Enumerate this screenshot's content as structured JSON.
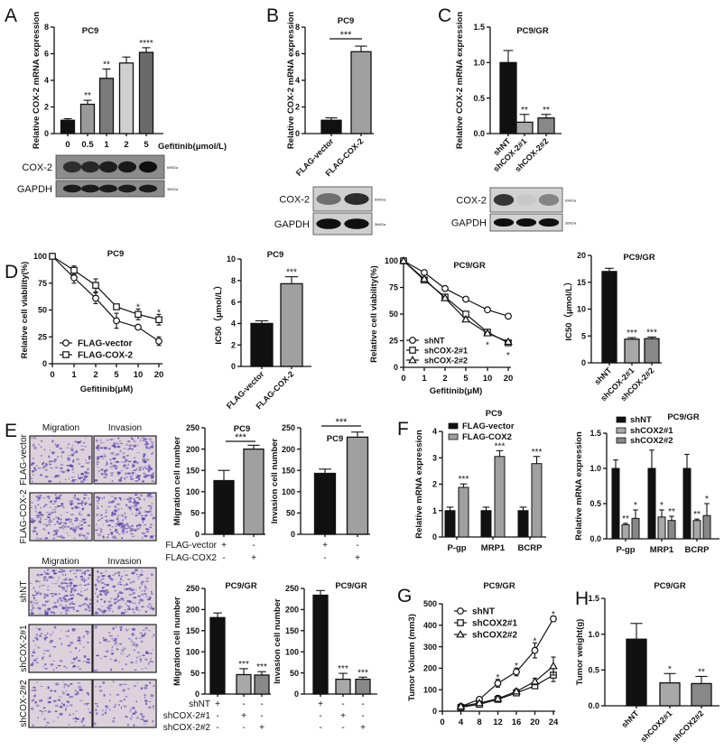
{
  "panel_labels": [
    "A",
    "B",
    "C",
    "D",
    "E",
    "F",
    "G",
    "H"
  ],
  "blots": {
    "A": {
      "rows": [
        {
          "label": "COX-2",
          "size": "69KDa",
          "intensity": [
            0.75,
            0.8,
            0.88,
            0.92,
            1.0
          ]
        },
        {
          "label": "GAPDH",
          "size": "36KDa",
          "intensity": [
            0.9,
            0.9,
            0.9,
            0.9,
            0.9
          ]
        }
      ]
    },
    "B": {
      "rows": [
        {
          "label": "COX-2",
          "size": "69KDa",
          "intensity": [
            0.5,
            0.85
          ]
        },
        {
          "label": "GAPDH",
          "size": "36KDa",
          "intensity": [
            1.0,
            1.0
          ]
        }
      ]
    },
    "C": {
      "rows": [
        {
          "label": "COX-2",
          "size": "69KDa",
          "intensity": [
            0.8,
            0.05,
            0.4
          ]
        },
        {
          "label": "GAPDH",
          "size": "36KDa",
          "intensity": [
            1.0,
            1.0,
            1.0
          ]
        }
      ]
    }
  },
  "micrographs": {
    "pc9": {
      "columns": [
        "Migration",
        "Invasion"
      ],
      "rows": [
        "FLAG-vector",
        "FLAG-COX-2"
      ]
    },
    "pc9gr": {
      "columns": [
        "Migration",
        "Invasion"
      ],
      "rows": [
        "shNT",
        "shCOX-2#1",
        "shCOX-2#2"
      ]
    }
  },
  "chart_data": [
    {
      "id": "A",
      "type": "bar",
      "title": "PC9",
      "ylabel": "Relative COX-2 mRNA expression",
      "xlabel": "Gefitinib(μmol/L)",
      "categories": [
        "0",
        "0.5",
        "1",
        "2",
        "5"
      ],
      "values": [
        1,
        2.2,
        4.15,
        5.3,
        6.1
      ],
      "errors": [
        0.12,
        0.3,
        0.7,
        0.45,
        0.35
      ],
      "sig": [
        "",
        "**",
        "**",
        "",
        "****"
      ],
      "ylim": [
        0,
        8
      ],
      "yticks": [
        "0",
        "2",
        "4",
        "6",
        "8"
      ],
      "colors": [
        "#111111",
        "#9a9a9a",
        "#7a7a7a",
        "#cfcfcf",
        "#6a6a6a"
      ]
    },
    {
      "id": "B",
      "type": "bar",
      "title": "PC9",
      "ylabel": "Relative COX-2 mRNA expression",
      "categories": [
        "FLAG-vector",
        "FLAG-COX-2"
      ],
      "values": [
        1,
        6.15
      ],
      "errors": [
        0.18,
        0.42
      ],
      "bracket_sig": "***",
      "ylim": [
        0,
        8
      ],
      "yticks": [
        "0",
        "2",
        "4",
        "6",
        "8"
      ],
      "colors": [
        "#111111",
        "#a0a0a0"
      ]
    },
    {
      "id": "C",
      "type": "bar",
      "title": "PC9/GR",
      "ylabel": "Relative COX-2 mRNA expression",
      "categories": [
        "shNT",
        "shCOX-2#1",
        "shCOX-2#2"
      ],
      "values": [
        1,
        0.16,
        0.22
      ],
      "errors": [
        0.17,
        0.11,
        0.05
      ],
      "sig": [
        "",
        "**",
        "**"
      ],
      "ylim": [
        0,
        1.5
      ],
      "yticks": [
        "0.0",
        "0.5",
        "1.0",
        "1.5"
      ],
      "colors": [
        "#111111",
        "#a8a8a8",
        "#888888"
      ]
    },
    {
      "id": "D1",
      "type": "line",
      "title": "PC9",
      "ylabel": "Relative cell viability(%)",
      "xlabel": "Gefitinib(μM)",
      "x": [
        "0",
        "1",
        "2",
        "5",
        "10",
        "20"
      ],
      "ylim": [
        0,
        100
      ],
      "yticks": [
        "0",
        "25",
        "50",
        "75",
        "100"
      ],
      "legend": "bottom-left",
      "series": [
        {
          "name": "FLAG-vector",
          "marker": "circle",
          "values": [
            100,
            80,
            61,
            40,
            34,
            21
          ],
          "errors": [
            0,
            5,
            5,
            7,
            1,
            4
          ]
        },
        {
          "name": "FLAG-COX-2",
          "marker": "square",
          "values": [
            100,
            87,
            73,
            53,
            46,
            41
          ],
          "errors": [
            0,
            4,
            6,
            1,
            5,
            5
          ]
        }
      ],
      "sig": [
        "",
        "",
        "",
        "",
        "*",
        "*"
      ],
      "sig_position": "above"
    },
    {
      "id": "D2",
      "type": "bar",
      "title": "PC9",
      "ylabel": "IC50（μmol/L）",
      "categories": [
        "FLAG-vector",
        "FLAG-COX-2"
      ],
      "values": [
        4.0,
        7.7
      ],
      "errors": [
        0.25,
        0.65
      ],
      "sig": [
        "",
        "***"
      ],
      "ylim": [
        0,
        10
      ],
      "yticks": [
        "0",
        "2",
        "4",
        "6",
        "8",
        "10"
      ],
      "colors": [
        "#111111",
        "#a0a0a0"
      ]
    },
    {
      "id": "D3",
      "type": "line",
      "title": "PC9/GR",
      "ylabel": "Relative cell viability(%)",
      "xlabel": "Gefitinib(μM)",
      "x": [
        "0",
        "1",
        "2",
        "5",
        "10",
        "20"
      ],
      "ylim": [
        0,
        100
      ],
      "yticks": [
        "0",
        "25",
        "50",
        "75",
        "100"
      ],
      "legend": "bottom-left",
      "series": [
        {
          "name": "shNT",
          "marker": "circle",
          "values": [
            100,
            89,
            74,
            64,
            54,
            48
          ],
          "errors": [
            0,
            1,
            1,
            1,
            1,
            1
          ]
        },
        {
          "name": "shCOX-2#1",
          "marker": "square",
          "values": [
            100,
            82,
            66,
            50,
            33,
            23
          ],
          "errors": [
            0,
            1,
            1,
            1,
            1,
            2
          ]
        },
        {
          "name": "shCOX-2#2",
          "marker": "triangle",
          "values": [
            100,
            83,
            65,
            45,
            32,
            24
          ],
          "errors": [
            0,
            1,
            1,
            1,
            1,
            1
          ]
        }
      ],
      "sig": [
        "",
        "",
        "",
        "",
        "*",
        "*"
      ],
      "sig_position": "below"
    },
    {
      "id": "D4",
      "type": "bar",
      "title": "PC9/GR",
      "ylabel": "IC50（μmol/L）",
      "categories": [
        "shNT",
        "shCOX-2#1",
        "shCOX-2#2"
      ],
      "values": [
        17,
        4.4,
        4.5
      ],
      "errors": [
        0.6,
        0.3,
        0.3
      ],
      "sig": [
        "",
        "***",
        "***"
      ],
      "ylim": [
        0,
        20
      ],
      "yticks": [
        "0",
        "5",
        "10",
        "15",
        "20"
      ],
      "colors": [
        "#111111",
        "#a8a8a8",
        "#888888"
      ]
    },
    {
      "id": "E1",
      "type": "bar",
      "title": "PC9",
      "ylabel": "Migration cell number",
      "values": [
        126,
        200
      ],
      "errors": [
        24,
        9
      ],
      "bracket_sig": "***",
      "ylim": [
        0,
        250
      ],
      "yticks": [
        "0",
        "50",
        "100",
        "150",
        "200",
        "250"
      ],
      "colors": [
        "#111111",
        "#a0a0a0"
      ],
      "sign_rows": [
        {
          "label": "FLAG-vector",
          "signs": [
            "+",
            "-"
          ]
        },
        {
          "label": "FLAG-COX2",
          "signs": [
            "-",
            "+"
          ]
        }
      ]
    },
    {
      "id": "E2",
      "type": "bar",
      "title": "PC9",
      "ylabel": "Invasion cell number",
      "values": [
        143,
        228
      ],
      "errors": [
        10,
        12
      ],
      "bracket_sig": "***",
      "ylim": [
        0,
        250
      ],
      "yticks": [
        "0",
        "50",
        "100",
        "150",
        "200",
        "250"
      ],
      "colors": [
        "#111111",
        "#a0a0a0"
      ],
      "sign_rows": [
        {
          "signs": [
            "+",
            "-"
          ]
        },
        {
          "signs": [
            "-",
            "+"
          ]
        }
      ]
    },
    {
      "id": "E3",
      "type": "bar",
      "title": "PC9/GR",
      "ylabel": "Migration cell number",
      "values": [
        181,
        46,
        45
      ],
      "errors": [
        11,
        14,
        8
      ],
      "sig": [
        "",
        "***",
        "***"
      ],
      "ylim": [
        0,
        250
      ],
      "yticks": [
        "0",
        "50",
        "100",
        "150",
        "200",
        "250"
      ],
      "colors": [
        "#111111",
        "#a8a8a8",
        "#888888"
      ],
      "sign_rows": [
        {
          "label": "shNT",
          "signs": [
            "+",
            "-",
            "-"
          ]
        },
        {
          "label": "shCOX-2#1",
          "signs": [
            "-",
            "+",
            "-"
          ]
        },
        {
          "label": "shCOX-2#2",
          "signs": [
            "-",
            "-",
            "+"
          ]
        }
      ]
    },
    {
      "id": "E4",
      "type": "bar",
      "title": "PC9/GR",
      "ylabel": "Invasion cell number",
      "values": [
        234,
        35,
        35
      ],
      "errors": [
        11,
        14,
        5
      ],
      "sig": [
        "",
        "***",
        "***"
      ],
      "ylim": [
        0,
        250
      ],
      "yticks": [
        "0",
        "50",
        "100",
        "150",
        "200",
        "250"
      ],
      "colors": [
        "#111111",
        "#a8a8a8",
        "#888888"
      ],
      "sign_rows": [
        {
          "signs": [
            "+",
            "-",
            "-"
          ]
        },
        {
          "signs": [
            "-",
            "+",
            "-"
          ]
        },
        {
          "signs": [
            "-",
            "-",
            "+"
          ]
        }
      ]
    },
    {
      "id": "F1",
      "type": "grouped_bar",
      "title": "PC9",
      "ylabel": "Relative mRNA expression",
      "categories": [
        "P-gp",
        "MRP1",
        "BCRP"
      ],
      "ylim": [
        0,
        4
      ],
      "yticks": [
        "0",
        "1",
        "2",
        "3",
        "4"
      ],
      "legend": "top-left",
      "series": [
        {
          "name": "FLAG-vector",
          "color": "#111111",
          "values": [
            1,
            1,
            1
          ],
          "errors": [
            0.13,
            0.13,
            0.13
          ],
          "sig": [
            "",
            "",
            ""
          ]
        },
        {
          "name": "FLAG-COX2",
          "color": "#a0a0a0",
          "values": [
            1.88,
            3.05,
            2.78
          ],
          "errors": [
            0.13,
            0.22,
            0.27
          ],
          "sig": [
            "***",
            "***",
            "***"
          ]
        }
      ]
    },
    {
      "id": "F2",
      "type": "grouped_bar",
      "title": "PC9/GR",
      "ylabel": "Relative mRNA expression",
      "categories": [
        "P-gp",
        "MRP1",
        "BCRP"
      ],
      "ylim": [
        0,
        1.5
      ],
      "yticks": [
        "0.0",
        "0.5",
        "1.0",
        "1.5"
      ],
      "legend": "top-left",
      "series": [
        {
          "name": "shNT",
          "color": "#111111",
          "values": [
            1,
            1,
            1
          ],
          "errors": [
            0.12,
            0.26,
            0.2
          ],
          "sig": [
            "",
            "",
            ""
          ]
        },
        {
          "name": "shCOX2#1",
          "color": "#a8a8a8",
          "values": [
            0.2,
            0.31,
            0.26
          ],
          "errors": [
            0.02,
            0.1,
            0.02
          ],
          "sig": [
            "**",
            "*",
            "**"
          ]
        },
        {
          "name": "shCOX2#2",
          "color": "#888888",
          "values": [
            0.29,
            0.26,
            0.33
          ],
          "errors": [
            0.12,
            0.06,
            0.17
          ],
          "sig": [
            "*",
            "**",
            "*"
          ]
        }
      ]
    },
    {
      "id": "G",
      "type": "line",
      "title": "PC9/GR",
      "ylabel": "Tumor Volumn (mm3)",
      "x": [
        4,
        8,
        12,
        16,
        20,
        24
      ],
      "xlim": [
        0,
        24
      ],
      "xticks": [
        "0",
        "4",
        "8",
        "12",
        "16",
        "20",
        "24"
      ],
      "ylim": [
        0,
        500
      ],
      "yticks": [
        "0",
        "100",
        "200",
        "300",
        "400",
        "500"
      ],
      "legend": "top-left",
      "series": [
        {
          "name": "shNT",
          "marker": "circle",
          "values": [
            22,
            55,
            130,
            183,
            283,
            430
          ],
          "errors": [
            6,
            5,
            18,
            18,
            35,
            12
          ]
        },
        {
          "name": "shCOX2#1",
          "marker": "square",
          "values": [
            18,
            32,
            55,
            85,
            118,
            168
          ],
          "errors": [
            5,
            5,
            10,
            10,
            10,
            30
          ]
        },
        {
          "name": "shCOX2#2",
          "marker": "triangle",
          "values": [
            22,
            38,
            58,
            92,
            138,
            210
          ],
          "errors": [
            5,
            5,
            15,
            12,
            15,
            42
          ]
        }
      ],
      "sig": [
        "",
        "",
        "*",
        "*",
        "*",
        "*"
      ],
      "sig_position": "above"
    },
    {
      "id": "H",
      "type": "bar",
      "title": "PC9/GR",
      "ylabel": "Tumor weight(g)",
      "categories": [
        "shNT",
        "shCOX2#1",
        "shCOX2#2"
      ],
      "values": [
        0.93,
        0.32,
        0.31
      ],
      "errors": [
        0.22,
        0.13,
        0.1
      ],
      "sig": [
        "",
        "*",
        "**"
      ],
      "ylim": [
        0,
        1.5
      ],
      "yticks": [
        "0.0",
        "0.5",
        "1.0",
        "1.5"
      ],
      "colors": [
        "#111111",
        "#a8a8a8",
        "#888888"
      ]
    }
  ]
}
